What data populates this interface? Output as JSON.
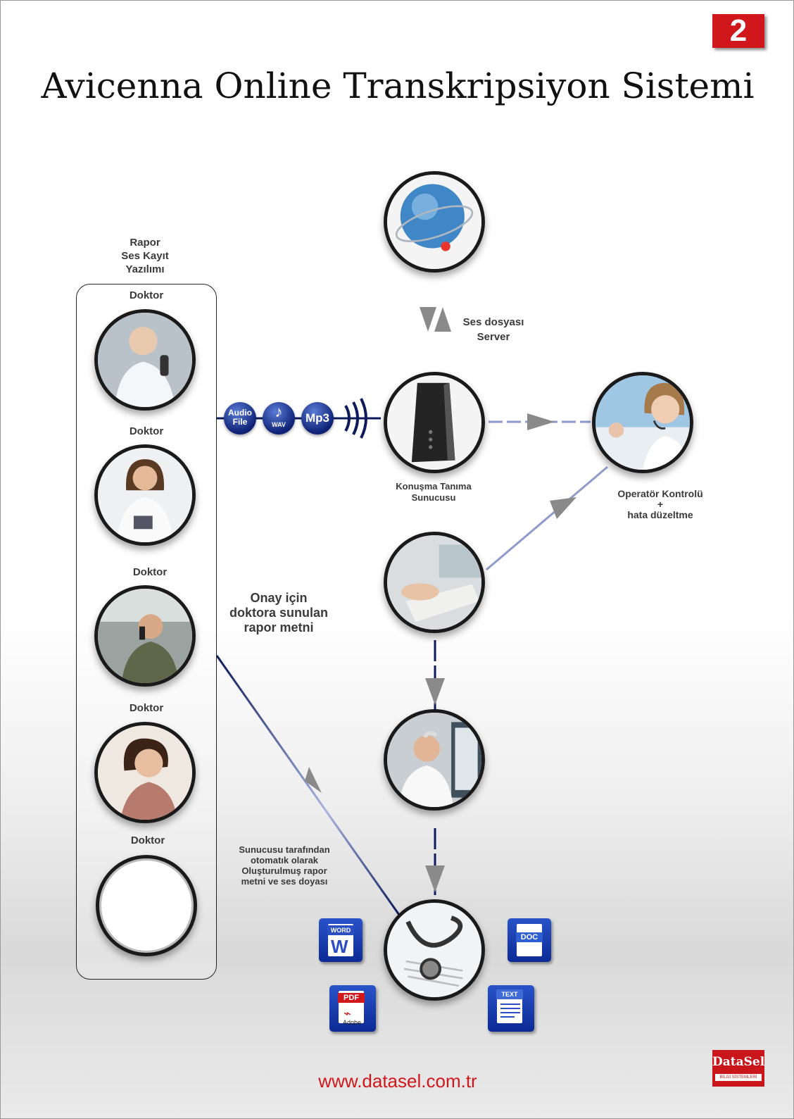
{
  "badge": "2",
  "title": "Avicenna Online Transkripsiyon Sistemi",
  "left_panel": {
    "heading_lines": [
      "Rapor",
      "Ses Kayıt",
      "Yazılımı"
    ],
    "doctors": [
      "Doktor",
      "Doktor",
      "Doktor",
      "Doktor",
      "Doktor"
    ]
  },
  "audio_formats": {
    "audio_line1": "Audio",
    "audio_line2": "File",
    "wav": "WAV",
    "mp3": "Mp3"
  },
  "labels": {
    "server_line1": "Ses dosyası",
    "server_line2": "Server",
    "speech_line1": "Konuşma Tanıma",
    "speech_line2": "Sunucusu",
    "operator_line1": "Operatör Kontrolü",
    "operator_line2": "+",
    "operator_line3": "hata düzeltme",
    "approval_line1": "Onay için",
    "approval_line2": "doktora sunulan",
    "approval_line3": "rapor metni",
    "auto_line1": "Sunucusu tarafından",
    "auto_line2": "otomatık olarak",
    "auto_line3": "Oluşturulmuş rapor",
    "auto_line4": "metni ve ses doyası"
  },
  "file_icons": {
    "word": "WORD",
    "doc": "DOC",
    "pdf": "PDF",
    "adobe": "Adobe",
    "text": "TEXT"
  },
  "footer": {
    "url": "www.datasel.com.tr",
    "logo_main": "DataSel",
    "logo_sub": "BİLGİ SİSTEMLERİ"
  },
  "colors": {
    "accent_red": "#d0181c",
    "arrow_navy": "#0d1a5c"
  },
  "icons": [
    "globe-icon",
    "server-icon",
    "operator-icon",
    "typing-icon",
    "doctor-computer-icon",
    "stethoscope-icon"
  ]
}
